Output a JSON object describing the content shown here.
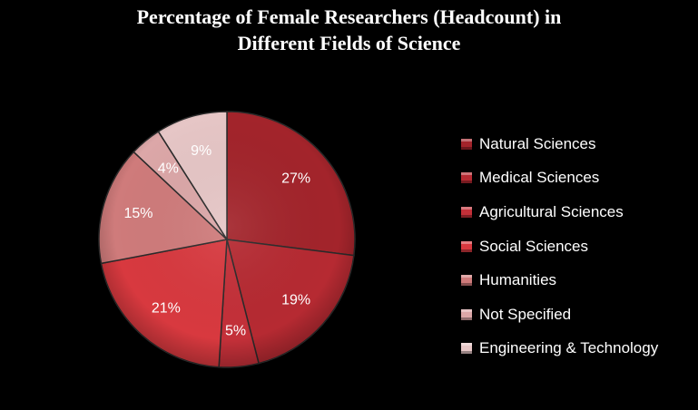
{
  "chart_data": {
    "type": "pie",
    "title": [
      "Percentage of Female Researchers (Headcount)  in",
      "Different Fields of Science"
    ],
    "legend_position": "right",
    "slices": [
      {
        "label": "Natural Sciences",
        "value": 27,
        "value_label": "27%",
        "color": "#a3242b"
      },
      {
        "label": "Medical Sciences",
        "value": 19,
        "value_label": "19%",
        "color": "#b62a32"
      },
      {
        "label": "Agricultural Sciences",
        "value": 5,
        "value_label": "5%",
        "color": "#c43039"
      },
      {
        "label": "Social Sciences",
        "value": 21,
        "value_label": "21%",
        "color": "#d8393f"
      },
      {
        "label": "Humanities",
        "value": 15,
        "value_label": "15%",
        "color": "#cf7b7b"
      },
      {
        "label": "Not Specified",
        "value": 4,
        "value_label": "4%",
        "color": "#dca7a8"
      },
      {
        "label": "Engineering & Technology",
        "value": 9,
        "value_label": "9%",
        "color": "#e6c6c6"
      }
    ]
  }
}
